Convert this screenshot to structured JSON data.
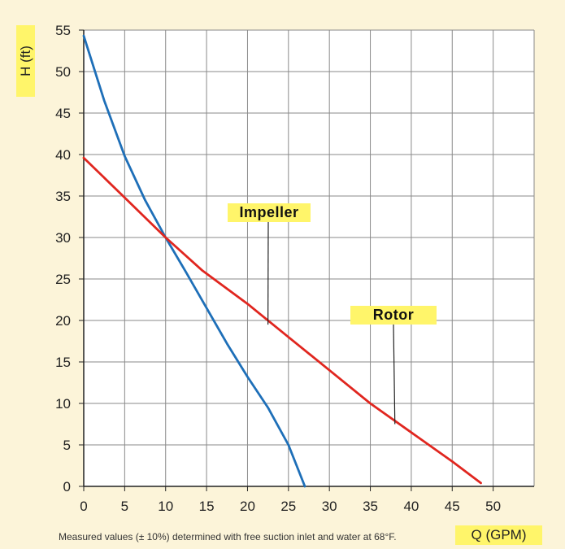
{
  "chart_data": {
    "type": "line",
    "xlabel": "Q (GPM)",
    "ylabel": "H (ft)",
    "xlim": [
      0,
      55
    ],
    "ylim": [
      0,
      55
    ],
    "x_ticks": [
      0,
      5,
      10,
      15,
      20,
      25,
      30,
      35,
      40,
      45,
      50
    ],
    "y_ticks": [
      0,
      5,
      10,
      15,
      20,
      25,
      30,
      35,
      40,
      45,
      50,
      55
    ],
    "grid": true,
    "series": [
      {
        "name": "Impeller",
        "color": "#1E6FB8",
        "x": [
          0,
          2.5,
          5,
          7.5,
          10,
          12.5,
          15,
          17.5,
          20,
          22.5,
          25,
          27
        ],
        "y": [
          54.3,
          46.5,
          39.8,
          34.5,
          30,
          25.8,
          21.5,
          17.2,
          13.2,
          9.5,
          5,
          0
        ]
      },
      {
        "name": "Rotor",
        "color": "#E0261F",
        "x": [
          0,
          5,
          10,
          14.5,
          20,
          25,
          30,
          35,
          40,
          45,
          48.5
        ],
        "y": [
          39.6,
          34.8,
          30,
          26,
          22,
          18,
          14,
          10,
          6.5,
          3,
          0.4
        ]
      }
    ],
    "annotations": [
      {
        "text": "Impeller",
        "points_to": [
          22.5,
          19.5
        ]
      },
      {
        "text": "Rotor",
        "points_to": [
          38,
          7.5
        ]
      }
    ],
    "footnote": "Measured values (± 10%) determined with free suction inlet and water at 68°F."
  }
}
